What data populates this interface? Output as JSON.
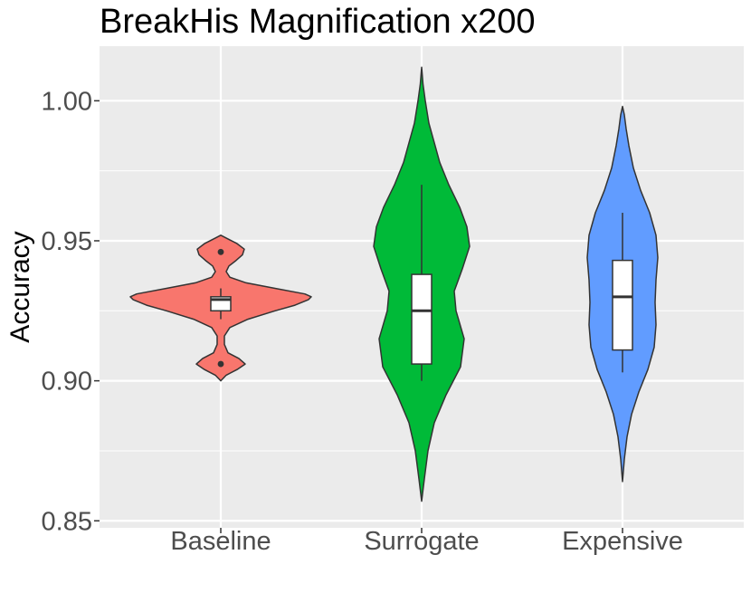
{
  "chart_data": {
    "type": "violin",
    "title": "BreakHis Magnification x200",
    "xlabel": "",
    "ylabel": "Accuracy",
    "ylim": [
      0.85,
      1.0
    ],
    "yticks": [
      "0.85",
      "0.90",
      "0.95",
      "1.00"
    ],
    "grid": true,
    "legend": "none",
    "categories": [
      "Baseline",
      "Surrogate",
      "Expensive"
    ],
    "series": [
      {
        "category": "Baseline",
        "color": "#F8766D",
        "min": 0.9,
        "max": 0.952,
        "box": {
          "q1": 0.925,
          "median": 0.929,
          "q3": 0.93,
          "whisker_low": 0.922,
          "whisker_high": 0.933
        },
        "outliers": [
          0.946,
          0.906
        ],
        "density": [
          [
            0.9,
            0.0
          ],
          [
            0.902,
            0.06
          ],
          [
            0.904,
            0.18
          ],
          [
            0.906,
            0.27
          ],
          [
            0.908,
            0.2
          ],
          [
            0.91,
            0.08
          ],
          [
            0.913,
            0.04
          ],
          [
            0.916,
            0.04
          ],
          [
            0.919,
            0.1
          ],
          [
            0.922,
            0.3
          ],
          [
            0.925,
            0.6
          ],
          [
            0.927,
            0.82
          ],
          [
            0.929,
            0.97
          ],
          [
            0.93,
            1.0
          ],
          [
            0.931,
            0.93
          ],
          [
            0.933,
            0.6
          ],
          [
            0.935,
            0.28
          ],
          [
            0.937,
            0.1
          ],
          [
            0.939,
            0.06
          ],
          [
            0.941,
            0.09
          ],
          [
            0.943,
            0.17
          ],
          [
            0.945,
            0.24
          ],
          [
            0.947,
            0.26
          ],
          [
            0.949,
            0.18
          ],
          [
            0.951,
            0.06
          ],
          [
            0.952,
            0.0
          ]
        ]
      },
      {
        "category": "Surrogate",
        "color": "#00BA38",
        "min": 0.857,
        "max": 1.012,
        "box": {
          "q1": 0.906,
          "median": 0.925,
          "q3": 0.938,
          "whisker_low": 0.9,
          "whisker_high": 0.97
        },
        "outliers": [],
        "density": [
          [
            0.857,
            0.0
          ],
          [
            0.865,
            0.03
          ],
          [
            0.875,
            0.07
          ],
          [
            0.885,
            0.14
          ],
          [
            0.895,
            0.27
          ],
          [
            0.905,
            0.43
          ],
          [
            0.915,
            0.47
          ],
          [
            0.925,
            0.38
          ],
          [
            0.932,
            0.36
          ],
          [
            0.94,
            0.45
          ],
          [
            0.948,
            0.53
          ],
          [
            0.955,
            0.5
          ],
          [
            0.962,
            0.42
          ],
          [
            0.97,
            0.3
          ],
          [
            0.978,
            0.2
          ],
          [
            0.985,
            0.14
          ],
          [
            0.992,
            0.08
          ],
          [
            1.0,
            0.04
          ],
          [
            1.006,
            0.015
          ],
          [
            1.012,
            0.0
          ]
        ]
      },
      {
        "category": "Expensive",
        "color": "#619CFF",
        "min": 0.864,
        "max": 0.998,
        "box": {
          "q1": 0.911,
          "median": 0.93,
          "q3": 0.943,
          "whisker_low": 0.903,
          "whisker_high": 0.96
        },
        "outliers": [],
        "density": [
          [
            0.864,
            0.0
          ],
          [
            0.872,
            0.02
          ],
          [
            0.88,
            0.05
          ],
          [
            0.888,
            0.1
          ],
          [
            0.896,
            0.18
          ],
          [
            0.904,
            0.28
          ],
          [
            0.912,
            0.35
          ],
          [
            0.92,
            0.37
          ],
          [
            0.928,
            0.36
          ],
          [
            0.936,
            0.37
          ],
          [
            0.944,
            0.39
          ],
          [
            0.952,
            0.37
          ],
          [
            0.96,
            0.3
          ],
          [
            0.968,
            0.2
          ],
          [
            0.976,
            0.12
          ],
          [
            0.984,
            0.07
          ],
          [
            0.99,
            0.04
          ],
          [
            0.995,
            0.02
          ],
          [
            0.998,
            0.0
          ]
        ]
      }
    ]
  }
}
